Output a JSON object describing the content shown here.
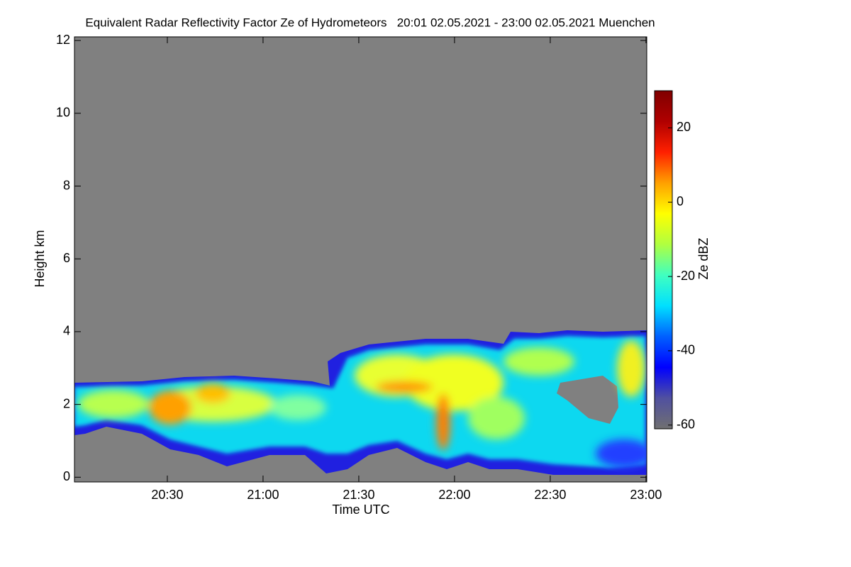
{
  "chart_data": {
    "type": "heatmap",
    "title": "Equivalent Radar Reflectivity Factor Ze of Hydrometeors   20:01 02.05.2021 - 23:00 02.05.2021 Muenchen",
    "x_label": "Time UTC",
    "y_label": "Height km",
    "colorbar_label": "Ze dBZ",
    "xlim": [
      20.015,
      23.004
    ],
    "xticks": [
      {
        "value": 20.5,
        "label": "20:30"
      },
      {
        "value": 21.0,
        "label": "21:00"
      },
      {
        "value": 21.5,
        "label": "21:30"
      },
      {
        "value": 22.0,
        "label": "22:00"
      },
      {
        "value": 22.5,
        "label": "22:30"
      },
      {
        "value": 23.0,
        "label": "23:00"
      }
    ],
    "ylim": [
      -0.13,
      12.1
    ],
    "yticks": [
      0,
      2,
      4,
      6,
      8,
      10,
      12
    ],
    "clim": [
      -61,
      30
    ],
    "cticks": [
      -60,
      -40,
      -20,
      0,
      20
    ],
    "colormap": [
      "#707070",
      "#5050a0",
      "#0000ff",
      "#0060ff",
      "#00e0ff",
      "#40ffc0",
      "#b0ff40",
      "#ffff00",
      "#ffa000",
      "#ff2000",
      "#b00000",
      "#800000"
    ],
    "background": "#808080"
  }
}
